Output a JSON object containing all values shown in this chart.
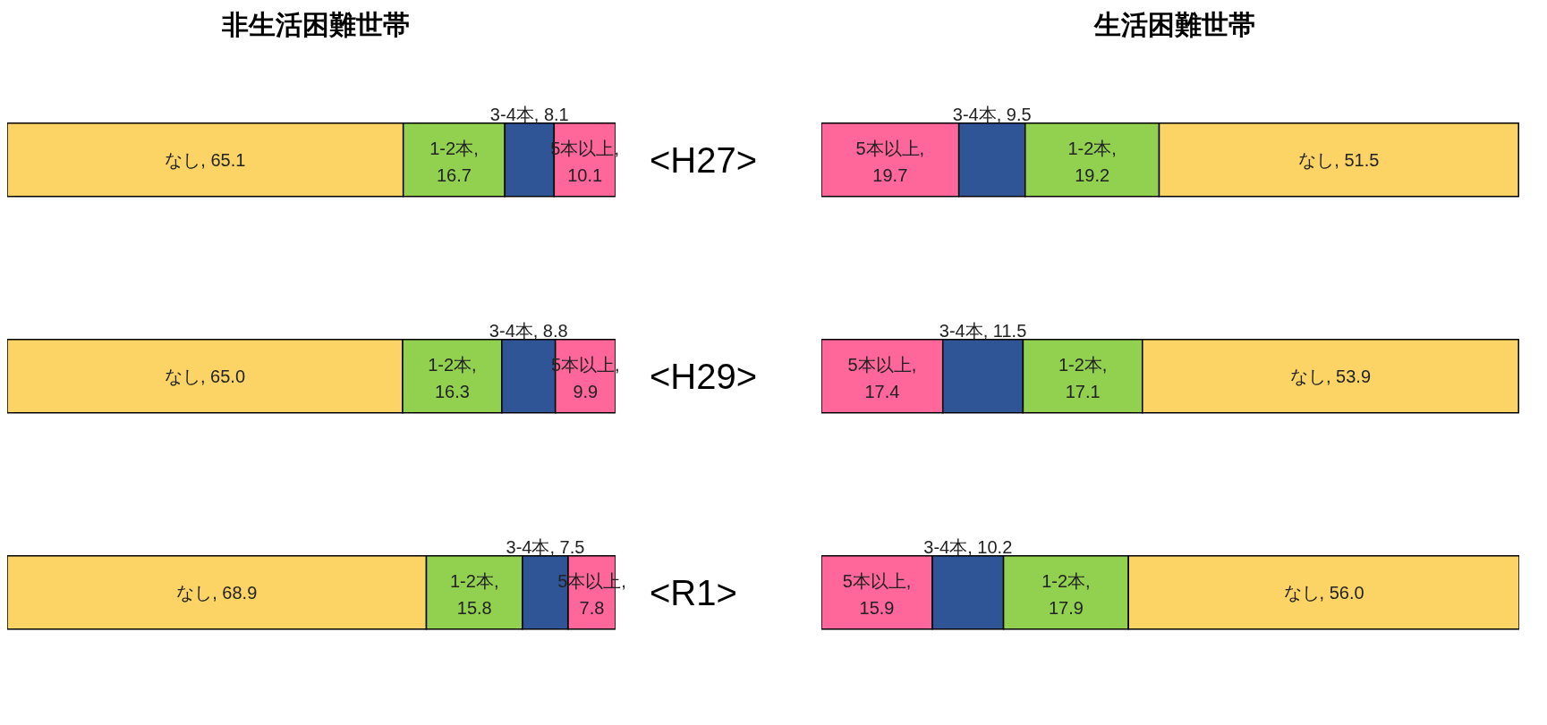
{
  "chart_data": [
    {
      "type": "bar",
      "orientation": "horizontal",
      "stacked": true,
      "title": "非生活困難世帯",
      "categories": [
        "<H27>",
        "<H29>",
        "<R1>"
      ],
      "xlim": [
        0,
        100
      ],
      "tick_labels": "y",
      "series": [
        {
          "color": "#fbd465",
          "values": [
            65.1,
            65.0,
            68.9
          ],
          "value_labels": [
            "なし, 65.1",
            "なし, 65.0",
            "なし, 68.9"
          ]
        },
        {
          "color": "#92d050",
          "values": [
            16.7,
            16.3,
            15.8
          ],
          "value_labels": [
            "1-2本, 16.7",
            "1-2本, 16.3",
            "1-2本, 15.8"
          ]
        },
        {
          "color": "#2f5597",
          "values": [
            8.1,
            8.8,
            7.5
          ],
          "value_labels": [
            "3-4本, 8.1",
            "3-4本, 8.8",
            "3-4本, 7.5"
          ]
        },
        {
          "color": "#ff6699",
          "values": [
            10.1,
            9.9,
            7.8
          ],
          "value_labels": [
            "5本以上, 10.1",
            "5本以上, 9.9",
            "5本以上, 7.8"
          ]
        }
      ]
    },
    {
      "type": "bar",
      "orientation": "horizontal",
      "stacked": true,
      "title": "生活困難世帯",
      "categories": [
        null,
        null,
        null
      ],
      "xlim": [
        0,
        100
      ],
      "tick_labels": false,
      "series": [
        {
          "color": "#ff6699",
          "values": [
            19.7,
            17.4,
            15.9
          ],
          "value_labels": [
            "5本以上, 19.7",
            "5本以上, 17.4",
            "5本以上, 15.9"
          ]
        },
        {
          "color": "#2f5597",
          "values": [
            9.5,
            11.5,
            10.2
          ],
          "value_labels": [
            "3-4本, 9.5",
            "3-4本, 11.5",
            "3-4本, 10.2"
          ]
        },
        {
          "color": "#92d050",
          "values": [
            19.2,
            17.1,
            17.9
          ],
          "value_labels": [
            "1-2本, 19.2",
            "1-2本, 17.1",
            "1-2本, 17.9"
          ]
        },
        {
          "color": "#fbd465",
          "values": [
            51.5,
            53.9,
            56.0
          ],
          "value_labels": [
            "なし, 51.5",
            "なし, 53.9",
            "なし, 56.0"
          ]
        }
      ]
    }
  ]
}
